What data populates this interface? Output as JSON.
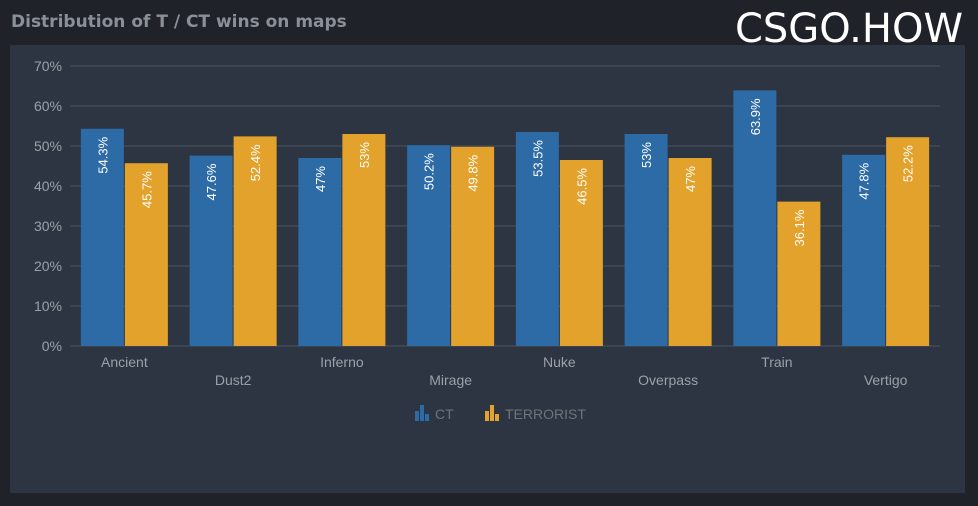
{
  "title": "Distribution of T / CT wins on maps",
  "watermark": "CSGO.HOW",
  "colors": {
    "ct": "#2d6ba7",
    "terrorist": "#e2a22c",
    "grid": "#4a5360",
    "panel": "#2c3541"
  },
  "chart_data": {
    "type": "bar",
    "categories": [
      "Ancient",
      "Dust2",
      "Inferno",
      "Mirage",
      "Nuke",
      "Overpass",
      "Train",
      "Vertigo"
    ],
    "series": [
      {
        "name": "CT",
        "values": [
          54.3,
          47.6,
          47,
          50.2,
          53.5,
          53,
          63.9,
          47.8
        ],
        "labels": [
          "54.3%",
          "47.6%",
          "47%",
          "50.2%",
          "53.5%",
          "53%",
          "63.9%",
          "47.8%"
        ]
      },
      {
        "name": "TERRORIST",
        "values": [
          45.7,
          52.4,
          53,
          49.8,
          46.5,
          47,
          36.1,
          52.2
        ],
        "labels": [
          "45.7%",
          "52.4%",
          "53%",
          "49.8%",
          "46.5%",
          "47%",
          "36.1%",
          "52.2%"
        ]
      }
    ],
    "ylim": [
      0,
      70
    ],
    "yticks": [
      "0%",
      "10%",
      "20%",
      "30%",
      "40%",
      "50%",
      "60%",
      "70%"
    ],
    "grid": true,
    "legend": "bottom"
  }
}
